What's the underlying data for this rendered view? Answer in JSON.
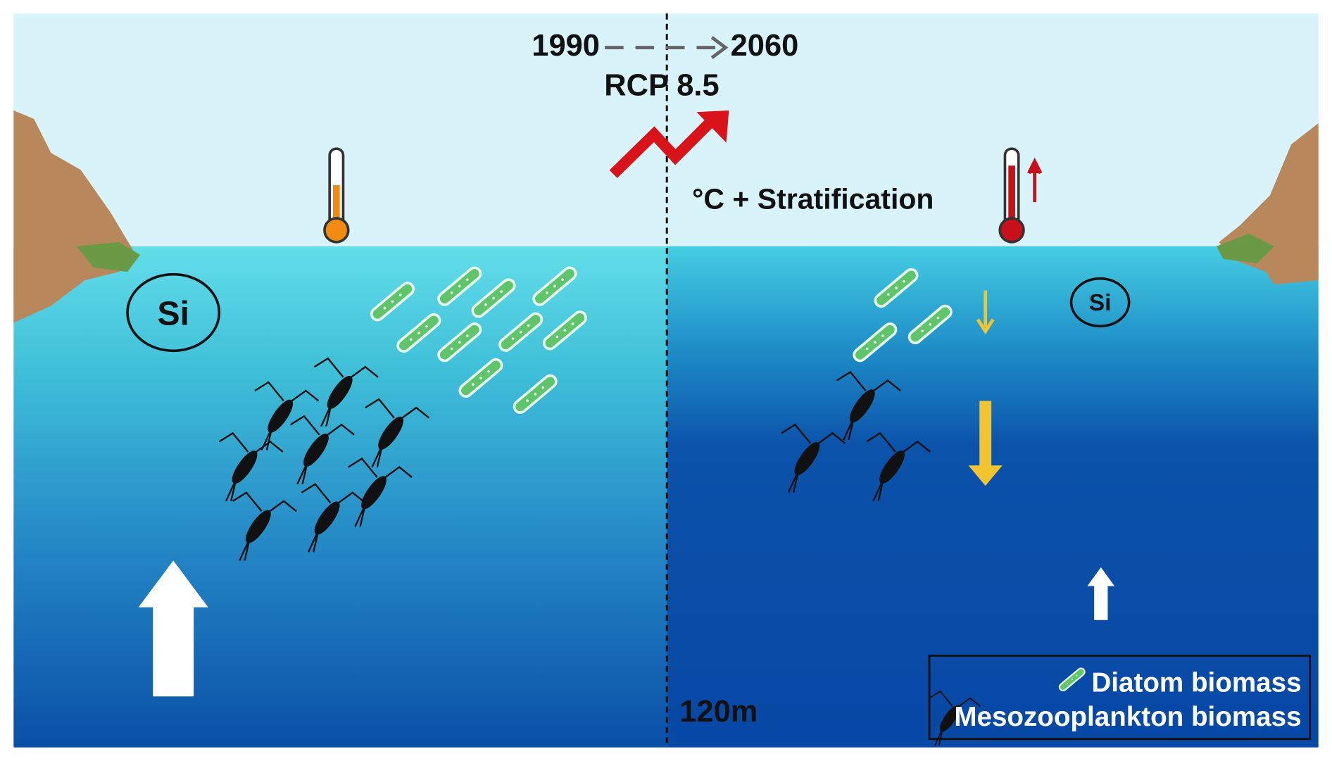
{
  "header": {
    "start_year": "1990",
    "end_year": "2060",
    "scenario": "RCP 8.5"
  },
  "labels": {
    "change": "°C + Stratification",
    "depth": "120m"
  },
  "left_panel": {
    "nutrient": "Si"
  },
  "right_panel": {
    "nutrient": "Si"
  },
  "legend": [
    {
      "label": "Diatom biomass"
    },
    {
      "label": "Mesozooplankton biomass"
    }
  ]
}
